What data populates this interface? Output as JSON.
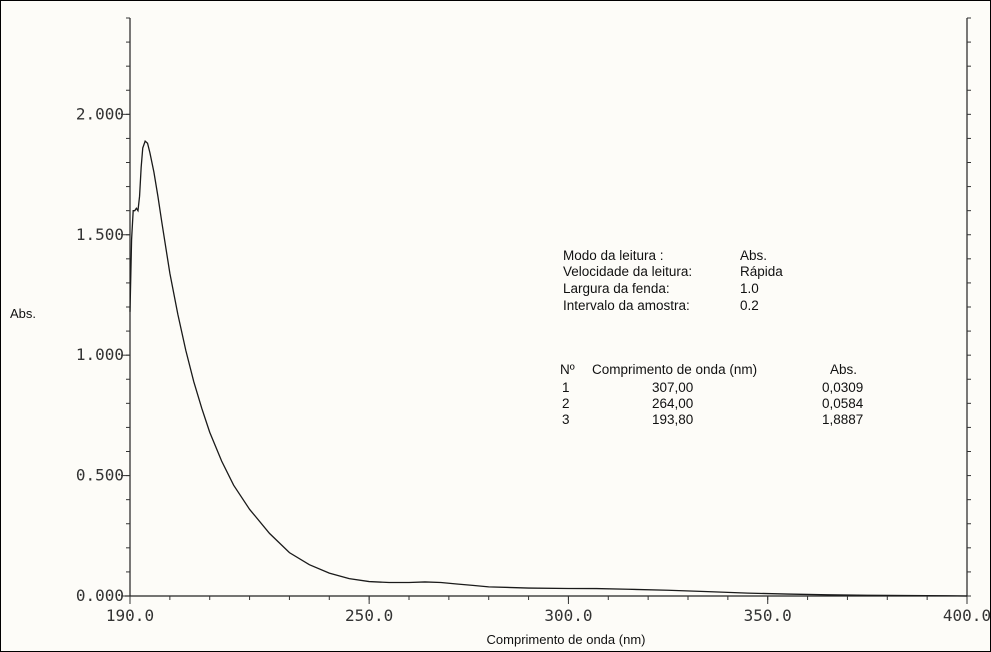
{
  "chart_data": {
    "type": "line",
    "xlabel": "Comprimento de onda (nm)",
    "ylabel": "Abs.",
    "xlim": [
      190,
      400
    ],
    "ylim": [
      0,
      2.4
    ],
    "x_ticks": [
      {
        "value": 190,
        "label": "190.0"
      },
      {
        "value": 250,
        "label": "250.0"
      },
      {
        "value": 300,
        "label": "300.0"
      },
      {
        "value": 350,
        "label": "350.0"
      },
      {
        "value": 400,
        "label": "400.0"
      }
    ],
    "y_ticks": [
      {
        "value": 0,
        "label": "0.000"
      },
      {
        "value": 0.5,
        "label": "0.500"
      },
      {
        "value": 1.0,
        "label": "1.000"
      },
      {
        "value": 1.5,
        "label": "1.500"
      },
      {
        "value": 2.0,
        "label": "2.000"
      }
    ],
    "grid": false,
    "series": [
      {
        "x": [
          190.0,
          190.4,
          190.8,
          191.2,
          191.6,
          192.0,
          192.4,
          192.8,
          193.2,
          193.8,
          194.4,
          195.0,
          196.0,
          197.0,
          198.0,
          200.0,
          202.0,
          204.0,
          206.0,
          208.0,
          210.0,
          213.0,
          216.0,
          220.0,
          225.0,
          230.0,
          235.0,
          240.0,
          245.0,
          250.0,
          255.0,
          260.0,
          264.0,
          268.0,
          272.0,
          276.0,
          280.0,
          290.0,
          300.0,
          307.0,
          315.0,
          325.0,
          335.0,
          345.0,
          355.0,
          365.0,
          375.0,
          385.0,
          395.0,
          400.0
        ],
        "y": [
          1.18,
          1.48,
          1.6,
          1.6,
          1.61,
          1.6,
          1.66,
          1.78,
          1.86,
          1.8887,
          1.88,
          1.84,
          1.76,
          1.66,
          1.55,
          1.34,
          1.17,
          1.02,
          0.89,
          0.78,
          0.68,
          0.56,
          0.46,
          0.36,
          0.26,
          0.18,
          0.13,
          0.095,
          0.072,
          0.06,
          0.056,
          0.056,
          0.0584,
          0.056,
          0.05,
          0.044,
          0.038,
          0.033,
          0.031,
          0.0309,
          0.028,
          0.024,
          0.018,
          0.012,
          0.008,
          0.005,
          0.003,
          0.002,
          0.001,
          0.0
        ]
      }
    ]
  },
  "info": {
    "settings": [
      {
        "label": "Modo da leitura :",
        "value": "Abs."
      },
      {
        "label": "Velocidade da leitura:",
        "value": "Rápida"
      },
      {
        "label": "Largura da fenda:",
        "value": "1.0"
      },
      {
        "label": "Intervalo da amostra:",
        "value": "0.2"
      }
    ],
    "peaks_header": {
      "num": "Nº",
      "wavelength": "Comprimento de onda (nm)",
      "abs": "Abs."
    },
    "peaks": [
      {
        "num": "1",
        "wavelength": "307,00",
        "abs": "0,0309"
      },
      {
        "num": "2",
        "wavelength": "264,00",
        "abs": "0,0584"
      },
      {
        "num": "3",
        "wavelength": "193,80",
        "abs": "1,8887"
      }
    ]
  }
}
